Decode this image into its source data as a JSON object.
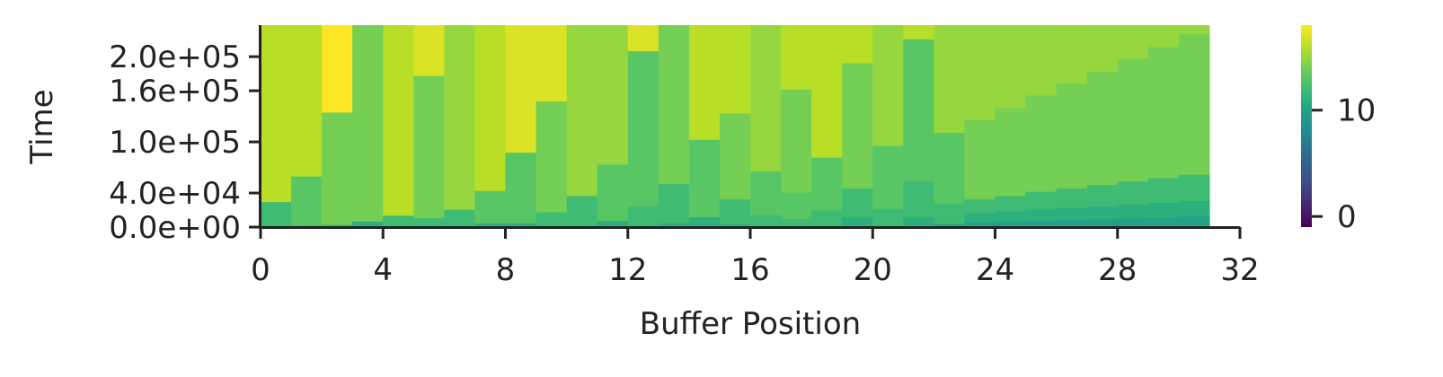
{
  "chart_data": {
    "type": "heatmap",
    "xlabel": "Buffer Position",
    "ylabel": "Time",
    "xlim": [
      0,
      32
    ],
    "ylim": [
      0,
      237000
    ],
    "x_ticks": [
      "0",
      "4",
      "8",
      "12",
      "16",
      "20",
      "24",
      "28",
      "32"
    ],
    "x_tick_values": [
      0,
      4,
      8,
      12,
      16,
      20,
      24,
      28,
      32
    ],
    "y_ticks": [
      "0.0e+00",
      "4.0e+04",
      "1.0e+05",
      "1.6e+05",
      "2.0e+05"
    ],
    "y_tick_values": [
      0,
      40000,
      100000,
      160000,
      200000
    ],
    "colorbar": {
      "colormap": "viridis",
      "range": [
        -1,
        18
      ],
      "ticks": [
        "0",
        "10"
      ],
      "tick_values": [
        0,
        10
      ]
    },
    "columns": 31,
    "bands_note": "each column lists constant-value segments from time 0 upward: [t_start, t_end, value]",
    "column_segments": [
      [
        [
          0,
          2000,
          9
        ],
        [
          2000,
          30000,
          12
        ],
        [
          30000,
          237000,
          16
        ]
      ],
      [
        [
          0,
          2000,
          8
        ],
        [
          2000,
          60000,
          13
        ],
        [
          60000,
          237000,
          16
        ]
      ],
      [
        [
          0,
          3000,
          11
        ],
        [
          3000,
          135000,
          14
        ],
        [
          135000,
          237000,
          18
        ]
      ],
      [
        [
          0,
          7000,
          11
        ],
        [
          7000,
          237000,
          14
        ]
      ],
      [
        [
          0,
          14000,
          12
        ],
        [
          14000,
          237000,
          16
        ]
      ],
      [
        [
          0,
          11000,
          12
        ],
        [
          11000,
          178000,
          14
        ],
        [
          178000,
          237000,
          17
        ]
      ],
      [
        [
          0,
          21000,
          12
        ],
        [
          21000,
          237000,
          15
        ]
      ],
      [
        [
          0,
          5000,
          11
        ],
        [
          5000,
          43000,
          13
        ],
        [
          43000,
          237000,
          16
        ]
      ],
      [
        [
          0,
          5000,
          11
        ],
        [
          5000,
          88000,
          13
        ],
        [
          88000,
          237000,
          17
        ]
      ],
      [
        [
          0,
          18000,
          12
        ],
        [
          18000,
          148000,
          14
        ],
        [
          148000,
          237000,
          17
        ]
      ],
      [
        [
          0,
          37000,
          12
        ],
        [
          37000,
          237000,
          15
        ]
      ],
      [
        [
          0,
          8000,
          11
        ],
        [
          8000,
          74000,
          13
        ],
        [
          74000,
          237000,
          15
        ]
      ],
      [
        [
          0,
          25000,
          12
        ],
        [
          25000,
          207000,
          13
        ],
        [
          207000,
          237000,
          17
        ]
      ],
      [
        [
          0,
          5000,
          11
        ],
        [
          5000,
          51000,
          12
        ],
        [
          51000,
          237000,
          14
        ]
      ],
      [
        [
          0,
          12000,
          11
        ],
        [
          12000,
          103000,
          13
        ],
        [
          103000,
          237000,
          16
        ]
      ],
      [
        [
          0,
          4000,
          11
        ],
        [
          4000,
          33000,
          12
        ],
        [
          33000,
          134000,
          14
        ],
        [
          134000,
          237000,
          16
        ]
      ],
      [
        [
          0,
          15000,
          12
        ],
        [
          15000,
          66000,
          13
        ],
        [
          66000,
          237000,
          15
        ]
      ],
      [
        [
          0,
          10000,
          12
        ],
        [
          10000,
          41000,
          13
        ],
        [
          41000,
          162000,
          14
        ],
        [
          162000,
          237000,
          16
        ]
      ],
      [
        [
          0,
          20000,
          12
        ],
        [
          20000,
          82000,
          13
        ],
        [
          82000,
          237000,
          16
        ]
      ],
      [
        [
          0,
          12000,
          11
        ],
        [
          12000,
          46000,
          12
        ],
        [
          46000,
          193000,
          14
        ],
        [
          193000,
          237000,
          16
        ]
      ],
      [
        [
          0,
          22000,
          12
        ],
        [
          22000,
          96000,
          13
        ],
        [
          96000,
          237000,
          15
        ]
      ],
      [
        [
          0,
          12000,
          11
        ],
        [
          12000,
          54000,
          12
        ],
        [
          54000,
          221000,
          13
        ],
        [
          221000,
          237000,
          16
        ]
      ],
      [
        [
          0,
          4000,
          10
        ],
        [
          4000,
          28000,
          12
        ],
        [
          28000,
          111000,
          13
        ],
        [
          111000,
          237000,
          15
        ]
      ],
      [
        [
          0,
          6000,
          10
        ],
        [
          6000,
          17000,
          11
        ],
        [
          17000,
          33000,
          12
        ],
        [
          33000,
          126000,
          14
        ],
        [
          126000,
          237000,
          15
        ]
      ],
      [
        [
          0,
          7000,
          10
        ],
        [
          7000,
          19000,
          11
        ],
        [
          19000,
          37000,
          12
        ],
        [
          37000,
          140000,
          14
        ],
        [
          140000,
          237000,
          15
        ]
      ],
      [
        [
          0,
          8000,
          10
        ],
        [
          8000,
          21000,
          11
        ],
        [
          21000,
          42000,
          12
        ],
        [
          42000,
          155000,
          14
        ],
        [
          155000,
          237000,
          15
        ]
      ],
      [
        [
          0,
          9000,
          10
        ],
        [
          9000,
          23000,
          11
        ],
        [
          23000,
          46000,
          12
        ],
        [
          46000,
          169000,
          14
        ],
        [
          169000,
          237000,
          15
        ]
      ],
      [
        [
          0,
          10000,
          10
        ],
        [
          10000,
          25000,
          11
        ],
        [
          25000,
          50000,
          12
        ],
        [
          50000,
          183000,
          14
        ],
        [
          183000,
          237000,
          15
        ]
      ],
      [
        [
          0,
          11000,
          10
        ],
        [
          11000,
          27000,
          11
        ],
        [
          27000,
          54000,
          12
        ],
        [
          54000,
          198000,
          14
        ],
        [
          198000,
          237000,
          15
        ]
      ],
      [
        [
          0,
          12000,
          10
        ],
        [
          12000,
          29000,
          11
        ],
        [
          29000,
          58000,
          12
        ],
        [
          58000,
          212000,
          14
        ],
        [
          212000,
          237000,
          15
        ]
      ],
      [
        [
          0,
          13000,
          10
        ],
        [
          13000,
          31000,
          11
        ],
        [
          31000,
          62000,
          12
        ],
        [
          62000,
          227000,
          14
        ],
        [
          227000,
          237000,
          15
        ]
      ]
    ]
  }
}
